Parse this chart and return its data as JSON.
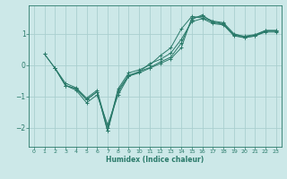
{
  "background_color": "#cce8e8",
  "grid_color": "#aacfcf",
  "line_color": "#2a7a6a",
  "xlabel": "Humidex (Indice chaleur)",
  "ylabel": "",
  "xlim": [
    -0.5,
    23.5
  ],
  "ylim": [
    -2.6,
    1.9
  ],
  "yticks": [
    -2,
    -1,
    0,
    1
  ],
  "xticks": [
    0,
    1,
    2,
    3,
    4,
    5,
    6,
    7,
    8,
    9,
    10,
    11,
    12,
    13,
    14,
    15,
    16,
    17,
    18,
    19,
    20,
    21,
    22,
    23
  ],
  "series": [
    {
      "x": [
        1,
        2,
        3,
        4,
        5,
        6,
        7,
        8,
        9,
        10,
        11,
        12,
        13,
        14,
        15,
        16,
        17,
        18,
        19,
        20,
        21,
        22,
        23
      ],
      "y": [
        0.35,
        -0.1,
        -0.65,
        -0.8,
        -1.2,
        -0.95,
        -1.9,
        -0.95,
        -0.35,
        -0.25,
        -0.1,
        0.05,
        0.2,
        0.55,
        1.5,
        1.55,
        1.4,
        1.35,
        1.0,
        0.9,
        0.95,
        1.1,
        1.1
      ]
    },
    {
      "x": [
        1,
        2,
        3,
        4,
        5,
        6,
        7,
        8,
        9,
        10,
        11,
        12,
        13,
        14,
        15,
        16,
        17,
        18,
        19,
        20,
        21,
        22,
        23
      ],
      "y": [
        0.35,
        -0.1,
        -0.65,
        -0.75,
        -1.1,
        -0.85,
        -2.1,
        -0.85,
        -0.35,
        -0.2,
        -0.08,
        0.1,
        0.25,
        0.7,
        1.45,
        1.6,
        1.35,
        1.3,
        0.95,
        0.88,
        0.92,
        1.08,
        1.08
      ]
    },
    {
      "x": [
        2,
        3,
        4,
        5,
        6,
        7,
        8,
        9,
        10,
        11,
        12,
        13,
        14,
        15,
        16,
        17,
        18,
        19,
        20,
        21,
        22,
        23
      ],
      "y": [
        -0.1,
        -0.65,
        -0.75,
        -1.1,
        -0.85,
        -2.1,
        -0.75,
        -0.25,
        -0.15,
        0.0,
        0.3,
        0.55,
        1.15,
        1.55,
        1.5,
        1.38,
        1.32,
        0.97,
        0.92,
        0.97,
        1.1,
        1.1
      ]
    },
    {
      "x": [
        2,
        3,
        4,
        5,
        6,
        7,
        8,
        9,
        10,
        11,
        12,
        13,
        14,
        15,
        16,
        17,
        18,
        19,
        20,
        21,
        22,
        23
      ],
      "y": [
        -0.1,
        -0.58,
        -0.72,
        -1.05,
        -0.8,
        -2.0,
        -0.8,
        -0.32,
        -0.22,
        0.05,
        0.18,
        0.38,
        0.82,
        1.38,
        1.48,
        1.32,
        1.28,
        0.93,
        0.87,
        0.93,
        1.05,
        1.05
      ]
    }
  ]
}
